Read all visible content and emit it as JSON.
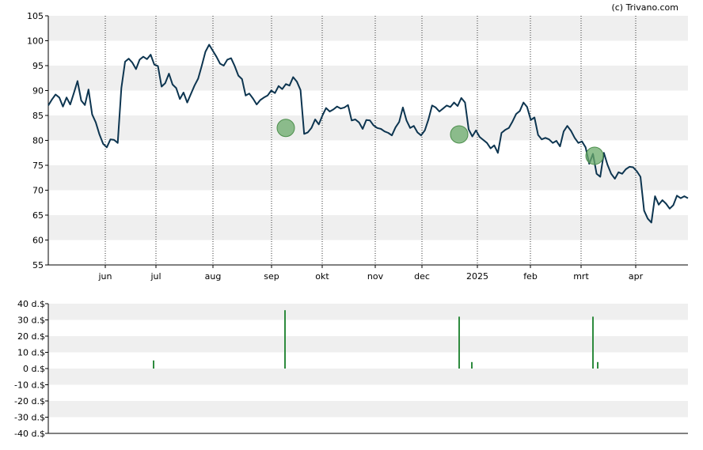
{
  "credit": "(c) Trivano.com",
  "chart_data": [
    {
      "type": "line",
      "title": "",
      "ylim": [
        55,
        105
      ],
      "yticks": [
        55,
        60,
        65,
        70,
        75,
        80,
        85,
        90,
        95,
        100,
        105
      ],
      "xlabels": [
        "jun",
        "jul",
        "aug",
        "sep",
        "okt",
        "nov",
        "dec",
        "2025",
        "feb",
        "mrt",
        "apr"
      ],
      "grid": "horizontal bands, dotted vertical month lines",
      "line_color": "#0d3550",
      "marker_color": "#6aa96a",
      "series": [
        {
          "values": [
            87.0,
            88.2,
            89.2,
            88.6,
            86.8,
            88.6,
            87.2,
            89.5,
            91.9,
            88.0,
            87.1,
            90.2,
            85.2,
            83.6,
            81.2,
            79.3,
            78.6,
            80.2,
            80.1,
            79.5,
            90.5,
            95.8,
            96.4,
            95.6,
            94.3,
            96.2,
            96.8,
            96.3,
            97.2,
            95.2,
            94.9,
            90.8,
            91.5,
            93.4,
            91.2,
            90.5,
            88.3,
            89.6,
            87.6,
            89.3,
            91.0,
            92.4,
            95.0,
            97.8,
            99.2,
            98.0,
            96.8,
            95.4,
            95.0,
            96.2,
            96.5,
            94.9,
            93.0,
            92.3,
            89.0,
            89.4,
            88.4,
            87.2,
            88.1,
            88.6,
            89.0,
            90.0,
            89.5,
            90.9,
            90.3,
            91.3,
            91.0,
            92.7,
            91.8,
            90.1,
            81.3,
            81.6,
            82.5,
            84.2,
            83.2,
            85.0,
            86.5,
            85.8,
            86.2,
            86.8,
            86.4,
            86.6,
            87.1,
            84.0,
            84.2,
            83.6,
            82.3,
            84.1,
            84.0,
            83.0,
            82.5,
            82.3,
            81.8,
            81.5,
            81.0,
            82.6,
            83.7,
            86.6,
            84.0,
            82.5,
            82.9,
            81.6,
            81.0,
            82.0,
            84.2,
            87.0,
            86.6,
            85.8,
            86.4,
            87.0,
            86.7,
            87.6,
            86.9,
            88.5,
            87.6,
            82.2,
            80.8,
            82.0,
            80.7,
            80.1,
            79.5,
            78.4,
            79.0,
            77.5,
            81.5,
            82.1,
            82.5,
            83.8,
            85.3,
            85.9,
            87.6,
            86.7,
            84.1,
            84.6,
            81.1,
            80.2,
            80.5,
            80.2,
            79.5,
            79.9,
            78.8,
            81.8,
            82.9,
            81.9,
            80.5,
            79.5,
            79.8,
            78.6,
            75.3,
            77.3,
            73.3,
            72.7,
            77.5,
            75.1,
            73.3,
            72.3,
            73.6,
            73.3,
            74.2,
            74.7,
            74.6,
            73.8,
            72.7,
            65.9,
            64.3,
            63.5,
            68.8,
            67.1,
            68.0,
            67.3,
            66.3,
            67.0,
            68.9,
            68.4,
            68.8,
            68.4
          ]
        }
      ],
      "markers": [
        {
          "date": "sep",
          "value": 82.5
        },
        {
          "date": "dec",
          "value": 81.2
        },
        {
          "date": "mrt",
          "value": 76.9
        }
      ]
    },
    {
      "type": "bar",
      "title": "",
      "ylim": [
        -40,
        40
      ],
      "yticks": [
        "40 d.$",
        "30 d.$",
        "20 d.$",
        "10 d.$",
        "0 d.$",
        "-10 d.$",
        "-20 d.$",
        "-30 d.$",
        "-40 d.$"
      ],
      "ytick_values": [
        40,
        30,
        20,
        10,
        0,
        -10,
        -20,
        -30,
        -40
      ],
      "bar_color": "#2e8b3e",
      "series": [
        {
          "points": [
            {
              "month": "jul",
              "value": 5
            },
            {
              "month": "sep",
              "value": 36
            },
            {
              "month": "dec",
              "value": 32
            },
            {
              "month": "dec",
              "value": 4
            },
            {
              "month": "mrt",
              "value": 32
            },
            {
              "month": "mrt",
              "value": 4
            }
          ]
        }
      ]
    }
  ]
}
